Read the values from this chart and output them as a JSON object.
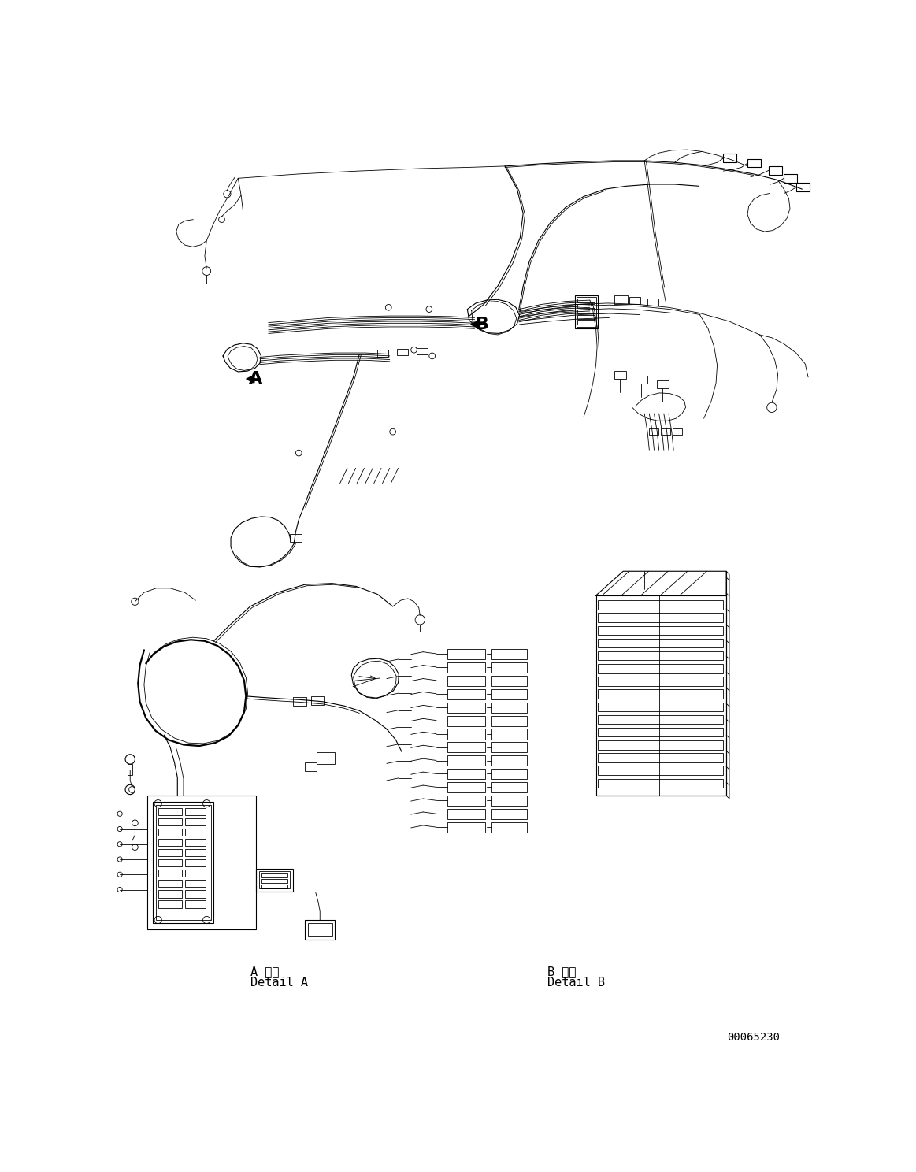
{
  "bg_color": "#ffffff",
  "line_color": "#000000",
  "fig_width": 11.63,
  "fig_height": 14.88,
  "dpi": 100,
  "label_A": "A",
  "label_B": "B",
  "detail_A_jp": "A 詳細",
  "detail_A_en": "Detail A",
  "detail_B_jp": "B 詳細",
  "detail_B_en": "Detail B",
  "part_number": "00065230",
  "lw": 1.0,
  "lw_thin": 0.6,
  "lw_thick": 1.6,
  "lw_med": 0.8
}
